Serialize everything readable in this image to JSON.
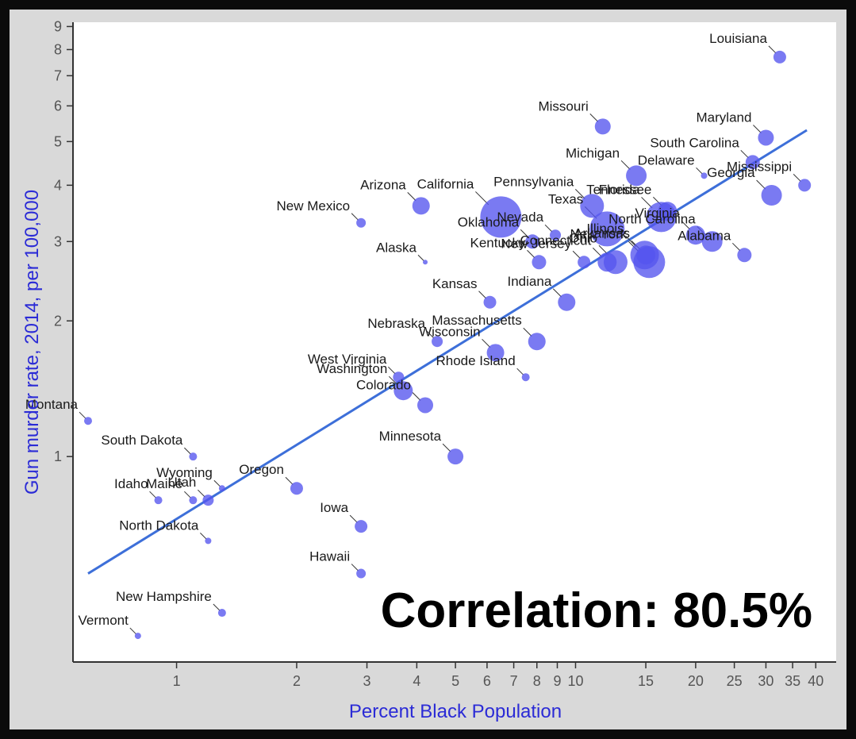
{
  "chart_data": {
    "type": "scatter",
    "title": "",
    "xlabel": "Percent Black Population",
    "ylabel": "Gun murder rate, 2014, per 100,000",
    "annotation": "Correlation: 80.5%",
    "x_scale": "log",
    "y_scale": "log",
    "xlim": [
      0.55,
      45
    ],
    "ylim": [
      0.35,
      9.2
    ],
    "x_ticks": [
      1,
      2,
      3,
      4,
      5,
      6,
      7,
      8,
      9,
      10,
      15,
      20,
      25,
      30,
      35,
      40
    ],
    "x_tick_labels": [
      "1",
      "2",
      "3",
      "4",
      "5",
      "6",
      "7",
      "8",
      "9",
      "10",
      "15",
      "20",
      "25",
      "30",
      "35",
      "40"
    ],
    "y_ticks": [
      1,
      2,
      3,
      4,
      5,
      6,
      7,
      8,
      9
    ],
    "y_tick_labels": [
      "1",
      "2",
      "3",
      "4",
      "5",
      "6",
      "7",
      "8",
      "9"
    ],
    "grid": false,
    "colors": {
      "points": "#5555ee",
      "trend": "#3d6fd9",
      "axis_title": "#2b2bd6"
    },
    "trend_line": {
      "x": [
        0.6,
        38
      ],
      "y": [
        0.55,
        5.3
      ]
    },
    "points": [
      {
        "name": "Louisiana",
        "x": 32.5,
        "y": 7.7,
        "size": 8
      },
      {
        "name": "Missouri",
        "x": 11.7,
        "y": 5.4,
        "size": 10
      },
      {
        "name": "South Carolina",
        "x": 27.8,
        "y": 4.5,
        "size": 9
      },
      {
        "name": "Maryland",
        "x": 30.0,
        "y": 5.1,
        "size": 10
      },
      {
        "name": "Delaware",
        "x": 21.0,
        "y": 4.2,
        "size": 4
      },
      {
        "name": "Mississippi",
        "x": 37.5,
        "y": 4.0,
        "size": 8
      },
      {
        "name": "Michigan",
        "x": 14.2,
        "y": 4.2,
        "size": 13
      },
      {
        "name": "Pennsylvania",
        "x": 11.0,
        "y": 3.6,
        "size": 15
      },
      {
        "name": "Nevada",
        "x": 8.9,
        "y": 3.1,
        "size": 7
      },
      {
        "name": "Florida",
        "x": 16.4,
        "y": 3.4,
        "size": 19
      },
      {
        "name": "Tennessee",
        "x": 17.0,
        "y": 3.5,
        "size": 12
      },
      {
        "name": "Georgia",
        "x": 31.0,
        "y": 3.8,
        "size": 13
      },
      {
        "name": "Virginia",
        "x": 20.0,
        "y": 3.1,
        "size": 12
      },
      {
        "name": "North Carolina",
        "x": 22.0,
        "y": 3.0,
        "size": 13
      },
      {
        "name": "Alabama",
        "x": 26.5,
        "y": 2.8,
        "size": 9
      },
      {
        "name": "Arizona",
        "x": 4.1,
        "y": 3.6,
        "size": 11
      },
      {
        "name": "California",
        "x": 6.5,
        "y": 3.4,
        "size": 26
      },
      {
        "name": "Texas",
        "x": 12.0,
        "y": 3.2,
        "size": 22
      },
      {
        "name": "New Jersey",
        "x": 10.5,
        "y": 2.7,
        "size": 8
      },
      {
        "name": "New Mexico",
        "x": 2.9,
        "y": 3.3,
        "size": 6
      },
      {
        "name": "Oklahoma",
        "x": 7.8,
        "y": 3.0,
        "size": 9
      },
      {
        "name": "Kentucky",
        "x": 8.1,
        "y": 2.7,
        "size": 9
      },
      {
        "name": "Alaska",
        "x": 4.2,
        "y": 2.7,
        "size": 3
      },
      {
        "name": "Connecticut",
        "x": 12.0,
        "y": 2.7,
        "size": 12
      },
      {
        "name": "Illinois",
        "x": 14.9,
        "y": 2.8,
        "size": 18
      },
      {
        "name": "New York",
        "x": 15.3,
        "y": 2.7,
        "size": 20
      },
      {
        "name": "Arkansas",
        "x": 15.0,
        "y": 2.8,
        "size": 12
      },
      {
        "name": "Ohio",
        "x": 12.6,
        "y": 2.7,
        "size": 15
      },
      {
        "name": "Kansas",
        "x": 6.1,
        "y": 2.2,
        "size": 8
      },
      {
        "name": "Indiana",
        "x": 9.5,
        "y": 2.2,
        "size": 11
      },
      {
        "name": "Nebraska",
        "x": 4.5,
        "y": 1.8,
        "size": 7
      },
      {
        "name": "Massachusetts",
        "x": 8.0,
        "y": 1.8,
        "size": 11
      },
      {
        "name": "West Virginia",
        "x": 3.6,
        "y": 1.5,
        "size": 7
      },
      {
        "name": "Wisconsin",
        "x": 6.3,
        "y": 1.7,
        "size": 11
      },
      {
        "name": "Rhode Island",
        "x": 7.5,
        "y": 1.5,
        "size": 5
      },
      {
        "name": "Washington",
        "x": 3.7,
        "y": 1.4,
        "size": 12
      },
      {
        "name": "Colorado",
        "x": 4.2,
        "y": 1.3,
        "size": 10
      },
      {
        "name": "Montana",
        "x": 0.6,
        "y": 1.2,
        "size": 5
      },
      {
        "name": "South Dakota",
        "x": 1.1,
        "y": 1.0,
        "size": 5
      },
      {
        "name": "Minnesota",
        "x": 5.0,
        "y": 1.0,
        "size": 10
      },
      {
        "name": "Wyoming",
        "x": 1.3,
        "y": 0.85,
        "size": 4
      },
      {
        "name": "Oregon",
        "x": 2.0,
        "y": 0.85,
        "size": 8
      },
      {
        "name": "Idaho",
        "x": 0.9,
        "y": 0.8,
        "size": 5
      },
      {
        "name": "Maine",
        "x": 1.1,
        "y": 0.8,
        "size": 5
      },
      {
        "name": "Utah",
        "x": 1.2,
        "y": 0.8,
        "size": 7
      },
      {
        "name": "Iowa",
        "x": 2.9,
        "y": 0.7,
        "size": 8
      },
      {
        "name": "North Dakota",
        "x": 1.2,
        "y": 0.65,
        "size": 4
      },
      {
        "name": "Hawaii",
        "x": 2.9,
        "y": 0.55,
        "size": 6
      },
      {
        "name": "New Hampshire",
        "x": 1.3,
        "y": 0.45,
        "size": 5
      },
      {
        "name": "Vermont",
        "x": 0.8,
        "y": 0.4,
        "size": 4
      }
    ]
  }
}
